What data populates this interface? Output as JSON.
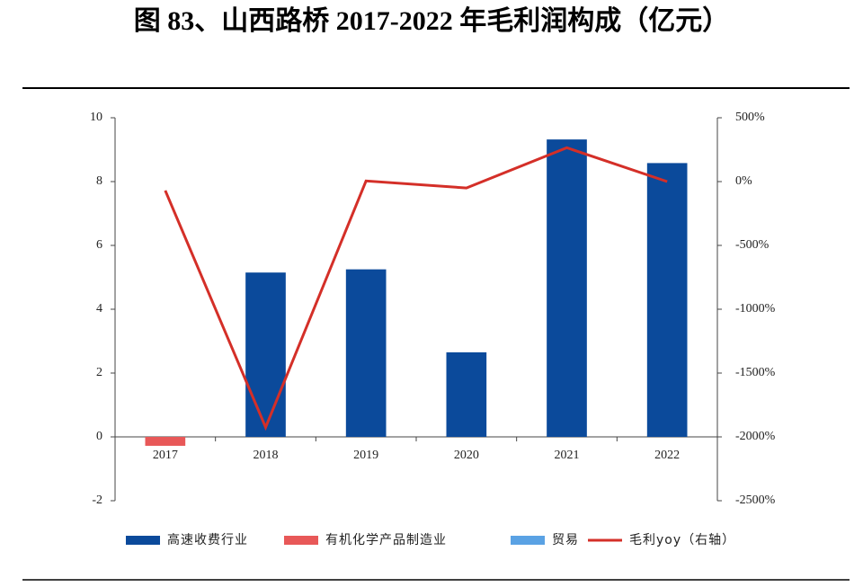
{
  "chart_data": {
    "type": "bar",
    "title": "图 83、山西路桥 2017-2022 年毛利润构成（亿元）",
    "categories": [
      "2017",
      "2018",
      "2019",
      "2020",
      "2021",
      "2022"
    ],
    "series": [
      {
        "name": "高速收费行业",
        "color": "#0b4a9b",
        "values": [
          null,
          5.15,
          5.25,
          2.65,
          9.32,
          8.58
        ]
      },
      {
        "name": "有机化学产品制造业",
        "color": "#e85858",
        "values": [
          -0.28,
          null,
          null,
          null,
          null,
          null
        ]
      },
      {
        "name": "贸易",
        "color": "#5aa2e4",
        "values": [
          null,
          null,
          null,
          null,
          null,
          null
        ]
      },
      {
        "name": "毛利yoy（右轴）",
        "color": "#d42f28",
        "type": "line",
        "axis": "y2",
        "values": [
          -70,
          -1925,
          5,
          -50,
          265,
          0
        ]
      }
    ],
    "ylim": [
      -2,
      10
    ],
    "yticks": [
      -2,
      0,
      2,
      4,
      6,
      8,
      10
    ],
    "y2lim": [
      -2500,
      500
    ],
    "y2ticks": [
      {
        "value": -2500,
        "label": "-2500%"
      },
      {
        "value": -2000,
        "label": "-2000%"
      },
      {
        "value": -1500,
        "label": "-1500%"
      },
      {
        "value": -1000,
        "label": "-1000%"
      },
      {
        "value": -500,
        "label": "-500%"
      },
      {
        "value": 0,
        "label": "0%"
      },
      {
        "value": 500,
        "label": "500%"
      }
    ]
  }
}
